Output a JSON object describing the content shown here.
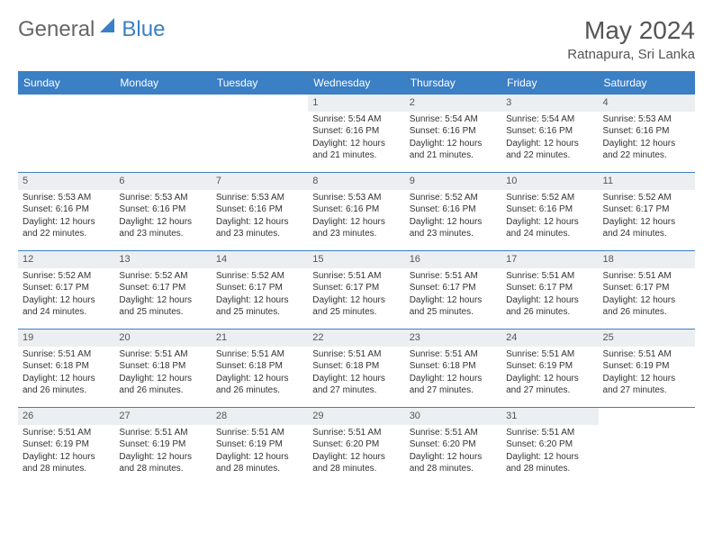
{
  "brand": {
    "text1": "General",
    "text2": "Blue",
    "icon_color": "#3b7fc4"
  },
  "title": {
    "month": "May 2024",
    "location": "Ratnapura, Sri Lanka"
  },
  "colors": {
    "header_bg": "#3b7fc4",
    "header_fg": "#ffffff",
    "daynum_bg": "#eceff1",
    "border": "#3b7fc4",
    "text": "#333333"
  },
  "day_headers": [
    "Sunday",
    "Monday",
    "Tuesday",
    "Wednesday",
    "Thursday",
    "Friday",
    "Saturday"
  ],
  "weeks": [
    [
      {
        "empty": true
      },
      {
        "empty": true
      },
      {
        "empty": true
      },
      {
        "day": "1",
        "sunrise": "5:54 AM",
        "sunset": "6:16 PM",
        "daylight": "12 hours and 21 minutes."
      },
      {
        "day": "2",
        "sunrise": "5:54 AM",
        "sunset": "6:16 PM",
        "daylight": "12 hours and 21 minutes."
      },
      {
        "day": "3",
        "sunrise": "5:54 AM",
        "sunset": "6:16 PM",
        "daylight": "12 hours and 22 minutes."
      },
      {
        "day": "4",
        "sunrise": "5:53 AM",
        "sunset": "6:16 PM",
        "daylight": "12 hours and 22 minutes."
      }
    ],
    [
      {
        "day": "5",
        "sunrise": "5:53 AM",
        "sunset": "6:16 PM",
        "daylight": "12 hours and 22 minutes."
      },
      {
        "day": "6",
        "sunrise": "5:53 AM",
        "sunset": "6:16 PM",
        "daylight": "12 hours and 23 minutes."
      },
      {
        "day": "7",
        "sunrise": "5:53 AM",
        "sunset": "6:16 PM",
        "daylight": "12 hours and 23 minutes."
      },
      {
        "day": "8",
        "sunrise": "5:53 AM",
        "sunset": "6:16 PM",
        "daylight": "12 hours and 23 minutes."
      },
      {
        "day": "9",
        "sunrise": "5:52 AM",
        "sunset": "6:16 PM",
        "daylight": "12 hours and 23 minutes."
      },
      {
        "day": "10",
        "sunrise": "5:52 AM",
        "sunset": "6:16 PM",
        "daylight": "12 hours and 24 minutes."
      },
      {
        "day": "11",
        "sunrise": "5:52 AM",
        "sunset": "6:17 PM",
        "daylight": "12 hours and 24 minutes."
      }
    ],
    [
      {
        "day": "12",
        "sunrise": "5:52 AM",
        "sunset": "6:17 PM",
        "daylight": "12 hours and 24 minutes."
      },
      {
        "day": "13",
        "sunrise": "5:52 AM",
        "sunset": "6:17 PM",
        "daylight": "12 hours and 25 minutes."
      },
      {
        "day": "14",
        "sunrise": "5:52 AM",
        "sunset": "6:17 PM",
        "daylight": "12 hours and 25 minutes."
      },
      {
        "day": "15",
        "sunrise": "5:51 AM",
        "sunset": "6:17 PM",
        "daylight": "12 hours and 25 minutes."
      },
      {
        "day": "16",
        "sunrise": "5:51 AM",
        "sunset": "6:17 PM",
        "daylight": "12 hours and 25 minutes."
      },
      {
        "day": "17",
        "sunrise": "5:51 AM",
        "sunset": "6:17 PM",
        "daylight": "12 hours and 26 minutes."
      },
      {
        "day": "18",
        "sunrise": "5:51 AM",
        "sunset": "6:17 PM",
        "daylight": "12 hours and 26 minutes."
      }
    ],
    [
      {
        "day": "19",
        "sunrise": "5:51 AM",
        "sunset": "6:18 PM",
        "daylight": "12 hours and 26 minutes."
      },
      {
        "day": "20",
        "sunrise": "5:51 AM",
        "sunset": "6:18 PM",
        "daylight": "12 hours and 26 minutes."
      },
      {
        "day": "21",
        "sunrise": "5:51 AM",
        "sunset": "6:18 PM",
        "daylight": "12 hours and 26 minutes."
      },
      {
        "day": "22",
        "sunrise": "5:51 AM",
        "sunset": "6:18 PM",
        "daylight": "12 hours and 27 minutes."
      },
      {
        "day": "23",
        "sunrise": "5:51 AM",
        "sunset": "6:18 PM",
        "daylight": "12 hours and 27 minutes."
      },
      {
        "day": "24",
        "sunrise": "5:51 AM",
        "sunset": "6:19 PM",
        "daylight": "12 hours and 27 minutes."
      },
      {
        "day": "25",
        "sunrise": "5:51 AM",
        "sunset": "6:19 PM",
        "daylight": "12 hours and 27 minutes."
      }
    ],
    [
      {
        "day": "26",
        "sunrise": "5:51 AM",
        "sunset": "6:19 PM",
        "daylight": "12 hours and 28 minutes."
      },
      {
        "day": "27",
        "sunrise": "5:51 AM",
        "sunset": "6:19 PM",
        "daylight": "12 hours and 28 minutes."
      },
      {
        "day": "28",
        "sunrise": "5:51 AM",
        "sunset": "6:19 PM",
        "daylight": "12 hours and 28 minutes."
      },
      {
        "day": "29",
        "sunrise": "5:51 AM",
        "sunset": "6:20 PM",
        "daylight": "12 hours and 28 minutes."
      },
      {
        "day": "30",
        "sunrise": "5:51 AM",
        "sunset": "6:20 PM",
        "daylight": "12 hours and 28 minutes."
      },
      {
        "day": "31",
        "sunrise": "5:51 AM",
        "sunset": "6:20 PM",
        "daylight": "12 hours and 28 minutes."
      },
      {
        "empty": true
      }
    ]
  ],
  "labels": {
    "sunrise": "Sunrise:",
    "sunset": "Sunset:",
    "daylight": "Daylight:"
  }
}
